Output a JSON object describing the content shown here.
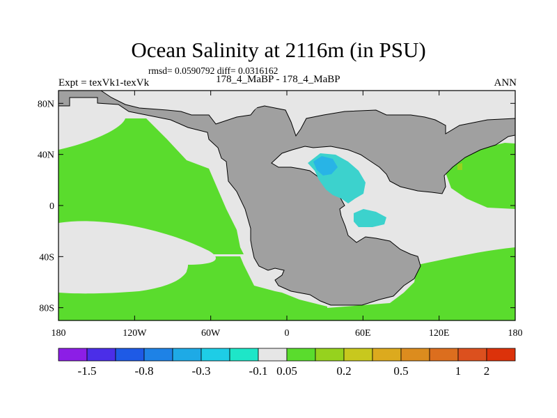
{
  "title": "Ocean Salinity at 2116m (in PSU)",
  "stats": "rmsd= 0.0590792 diff= 0.0316162",
  "experiment": "Expt = texVk1-texVk",
  "period": "178_4_MaBP - 178_4_MaBP",
  "season": "ANN",
  "chart_data": {
    "type": "heatmap",
    "title": "Ocean Salinity at 2116m (in PSU)",
    "subtitle": "rmsd= 0.0590792 diff= 0.0316162",
    "variable": "Ocean salinity difference",
    "units": "PSU",
    "projection": "cylindrical equidistant",
    "xlim": [
      -180,
      180
    ],
    "ylim": [
      -90,
      90
    ],
    "x_ticks": [
      {
        "value": -180,
        "label": "180"
      },
      {
        "value": -120,
        "label": "120W"
      },
      {
        "value": -60,
        "label": "60W"
      },
      {
        "value": 0,
        "label": "0"
      },
      {
        "value": 60,
        "label": "60E"
      },
      {
        "value": 120,
        "label": "120E"
      },
      {
        "value": 180,
        "label": "180"
      }
    ],
    "y_ticks": [
      {
        "value": 80,
        "label": "80N"
      },
      {
        "value": 40,
        "label": "40N"
      },
      {
        "value": 0,
        "label": "0"
      },
      {
        "value": -40,
        "label": "40S"
      },
      {
        "value": -80,
        "label": "80S"
      }
    ],
    "colorbar": {
      "colors": [
        "#8c1ee6",
        "#4b2ee8",
        "#1e5ae6",
        "#1e82e6",
        "#1eaae6",
        "#1ecde6",
        "#1ee6c8",
        "#e6e6e6",
        "#5adc2d",
        "#96d21e",
        "#c8c81e",
        "#dcaa1e",
        "#dc8c1e",
        "#dc6e1e",
        "#dc501e",
        "#dc320a"
      ],
      "labels": [
        "-1.5",
        "-0.8",
        "-0.3",
        "-0.1",
        "0.05",
        "0.2",
        "0.5",
        "1",
        "2"
      ],
      "label_after_box": [
        1,
        3,
        5,
        7,
        8,
        10,
        12,
        14,
        15
      ]
    },
    "colors": {
      "land": "#a0a0a0",
      "near_zero": "#e6e6e6",
      "positive_small": "#5adc2d",
      "negative_small": "#3cd2cd",
      "negative_mid": "#28b4e6",
      "positive_mid": "#96d21e"
    },
    "regions": [
      {
        "name": "land-supercontinent",
        "value_class": "land"
      },
      {
        "name": "north-polar-ocean",
        "value_class": "near_zero"
      },
      {
        "name": "panthalassa-north-tropical",
        "value_class": "positive_small"
      },
      {
        "name": "panthalassa-south-pacific",
        "value_class": "positive_small"
      },
      {
        "name": "panthalassa-northwest",
        "value_class": "near_zero"
      },
      {
        "name": "panthalassa-southwest",
        "value_class": "near_zero"
      },
      {
        "name": "tethys-east",
        "value_class": "near_zero"
      },
      {
        "name": "tethys-inner-anomaly",
        "value_class": "negative_small"
      },
      {
        "name": "tethys-south-anomaly",
        "value_class": "negative_small"
      },
      {
        "name": "east-panthalassa-south",
        "value_class": "positive_small"
      },
      {
        "name": "east-panthalassa-north",
        "value_class": "positive_small"
      }
    ]
  }
}
